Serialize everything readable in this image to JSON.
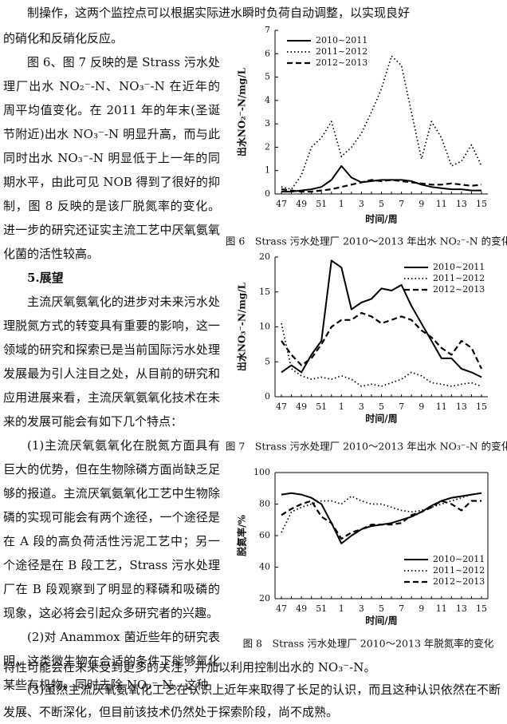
{
  "text": {
    "top": [
      "制操作，这两个监控点可以根据实际进水瞬时负荷自动调整，以实现良好"
    ],
    "column": [
      "的硝化和反硝化反应。",
      "图 6、图 7 反映的是 Strass 污水处理厂出水 NO₂⁻-N、NO₃⁻-N 在近年的周平均值变化。在 2011 年的年末(圣诞节附近)出水 NO₃⁻-N 明显升高，而与此同时出水 NO₃⁻-N 明显低于上一年的同期水平，由此可见 NOB 得到了很好的抑制，图 8 反映的是该厂脱氮率的变化。进一步的研究还证实主流工艺中厌氧氨氧化菌的活性较高。",
      "5.展望",
      "主流厌氧氨氧化的进步对未来污水处理脱氮方式的转变具有重要的影响，这一领域的研究和探索已是当前国际污水处理发展最为引人注目之处，从目前的研究和应用进展来看，主流厌氧氨氧化技术在未来的发展可能会有如下几个特点：",
      "(1)主流厌氧氨氧化在脱氮方面具有巨大的优势，但在生物除磷方面尚缺乏足够的报道。主流厌氧氨氧化工艺中生物除磷的实现可能会有两个途径，一个途径是在 A 段的高负荷活性污泥工艺中；另一个途径是在 B 段工艺，Strass 污水处理厂在 B 段观察到了明显的释磷和吸磷的现象，这必将会引起众多研究者的兴趣。",
      "(2)对 Anammox 菌近些年的研究表明，这类微生物在合适的条件下能够氧化某些有机物，同时去除 NO₃⁻-N。这种"
    ],
    "bottom": [
      "特性可能会在未来受到更多的关注，并加以利用控制出水的 NO₃⁻-N。",
      "(3)虽然主流厌氧氨氧化工艺在认识上近年来取得了长足的认识，而且这种认识依然在不断发展、不断深化，但目前该技术仍然处于探索阶段，尚不成熟。"
    ]
  },
  "chart_data": [
    {
      "type": "line",
      "caption": "图 6　Strass 污水处理厂 2010～2013 年出水 NO₂⁻-N 的变化",
      "x_label": "时间/周",
      "y_label": "出水NO₂⁻-N/mg/L",
      "categories": [
        "47",
        null,
        "49",
        null,
        "51",
        null,
        "1",
        null,
        "3",
        null,
        "5",
        null,
        "7",
        null,
        "9",
        null,
        "11",
        null,
        "13",
        null,
        "15"
      ],
      "ylim": [
        0,
        7
      ],
      "yticks": [
        0,
        1,
        2,
        3,
        4,
        5,
        6,
        7
      ],
      "legend": "upper left",
      "box": false,
      "series": [
        {
          "name": "2010~2011",
          "color": "#000000",
          "linestyle": "solid",
          "values": [
            0.1,
            0.1,
            0.15,
            0.2,
            0.3,
            0.6,
            1.2,
            0.7,
            0.5,
            0.55,
            0.6,
            0.6,
            0.6,
            0.55,
            0.4,
            0.3,
            0.25,
            0.2,
            0.2,
            0.15,
            0.15
          ]
        },
        {
          "name": "2011~2012",
          "color": "#000000",
          "linestyle": "dotted",
          "values": [
            0.3,
            0.2,
            0.8,
            2.0,
            2.4,
            3.1,
            1.6,
            2.0,
            2.6,
            3.5,
            4.5,
            5.9,
            5.5,
            3.5,
            1.5,
            3.1,
            2.4,
            1.2,
            1.4,
            2.1,
            1.2
          ]
        },
        {
          "name": "2012~2013",
          "color": "#000000",
          "linestyle": "dashed",
          "values": [
            0.2,
            0.15,
            0.1,
            0.1,
            0.15,
            0.2,
            0.3,
            0.4,
            0.5,
            0.6,
            0.55,
            0.6,
            0.55,
            0.5,
            0.45,
            0.4,
            0.4,
            0.45,
            0.4,
            0.35,
            0.4
          ]
        }
      ]
    },
    {
      "type": "line",
      "caption": "图 7　Strass 污水处理厂 2010～2013 年出水 NO₃⁻-N 的变化",
      "x_label": "时间/周",
      "y_label": "出水NO₃⁻-N/mg/L",
      "categories": [
        "47",
        null,
        "49",
        null,
        "51",
        null,
        "1",
        null,
        "3",
        null,
        "5",
        null,
        "7",
        null,
        "9",
        null,
        "11",
        null,
        "13",
        null,
        "15"
      ],
      "ylim": [
        0,
        20
      ],
      "yticks": [
        0,
        5,
        10,
        15,
        20
      ],
      "legend": "upper right",
      "box": false,
      "series": [
        {
          "name": "2010~2011",
          "color": "#000000",
          "linestyle": "solid",
          "values": [
            3.5,
            4.5,
            3.5,
            6,
            8,
            19.5,
            18.5,
            12.5,
            13.5,
            14,
            15.5,
            15.2,
            16,
            13,
            10.5,
            8,
            5.5,
            5.5,
            4,
            3.5,
            2.8
          ]
        },
        {
          "name": "2011~2012",
          "color": "#000000",
          "linestyle": "dotted",
          "values": [
            10.5,
            4,
            3,
            2.5,
            2.8,
            2.5,
            3,
            2.5,
            1.5,
            1.8,
            1.5,
            2,
            2.5,
            3.5,
            3,
            2,
            1.8,
            1.5,
            1.8,
            2,
            1.5
          ]
        },
        {
          "name": "2012~2013",
          "color": "#000000",
          "linestyle": "dashed",
          "values": [
            8,
            6,
            4.5,
            5.5,
            7.5,
            10,
            11,
            11,
            12,
            11.5,
            10.5,
            11,
            11.5,
            11,
            9.5,
            8.5,
            7,
            6,
            8,
            7,
            4
          ]
        }
      ]
    },
    {
      "type": "line",
      "caption": "图 8　Strass 污水处理厂 2010～2013 年脱氮率的变化",
      "x_label": "时间/周",
      "y_label": "脱氮率/%",
      "categories": [
        "47",
        null,
        "49",
        null,
        "51",
        null,
        "1",
        null,
        "3",
        null,
        "5",
        null,
        "7",
        null,
        "9",
        null,
        "11",
        null,
        "13",
        null,
        "15"
      ],
      "ylim": [
        20,
        100
      ],
      "yticks": [
        20,
        40,
        60,
        80,
        100
      ],
      "legend": "lower right",
      "box": true,
      "series": [
        {
          "name": "2010~2011",
          "color": "#000000",
          "linestyle": "solid",
          "values": [
            86,
            87,
            86,
            84,
            80,
            68,
            55,
            60,
            64,
            66,
            67,
            68,
            70,
            72,
            75,
            79,
            82,
            84,
            85,
            86,
            87
          ]
        },
        {
          "name": "2011~2012",
          "color": "#000000",
          "linestyle": "dotted",
          "values": [
            62,
            75,
            78,
            80,
            82,
            82,
            80,
            85,
            82,
            80,
            80,
            78,
            76,
            75,
            76,
            78,
            80,
            82,
            84,
            86,
            87
          ]
        },
        {
          "name": "2012~2013",
          "color": "#000000",
          "linestyle": "dashed",
          "values": [
            73,
            77,
            80,
            82,
            72,
            68,
            58,
            62,
            64,
            67,
            67,
            67,
            68,
            73,
            75,
            78,
            82,
            80,
            76,
            82,
            82
          ]
        }
      ]
    }
  ]
}
